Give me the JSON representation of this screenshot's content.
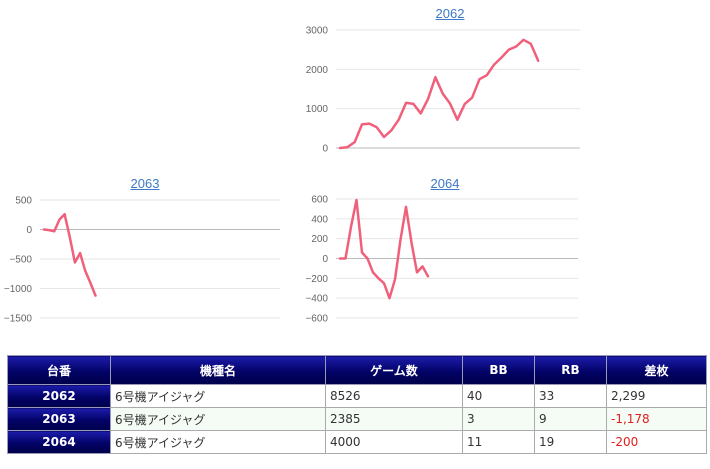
{
  "charts": [
    {
      "id": "2062",
      "title": "2062",
      "y_ticks": [
        "3000",
        "2000",
        "1000",
        "0"
      ],
      "chart_data": {
        "type": "line",
        "title": "2062",
        "ylim": [
          0,
          3000
        ],
        "y_ticks": [
          0,
          1000,
          2000,
          3000
        ],
        "color": "#f0607a",
        "series": [
          {
            "values": [
              0,
              20,
              150,
              600,
              620,
              530,
              280,
              450,
              720,
              1150,
              1120,
              880,
              1250,
              1800,
              1380,
              1130,
              720,
              1120,
              1280,
              1750,
              1850,
              2120,
              2300,
              2500,
              2580,
              2750,
              2650,
              2220
            ]
          }
        ]
      }
    },
    {
      "id": "2063",
      "title": "2063",
      "y_ticks": [
        "500",
        "0",
        "−500",
        "−1000",
        "−1500"
      ],
      "chart_data": {
        "type": "line",
        "title": "2063",
        "ylim": [
          -1500,
          500
        ],
        "y_ticks": [
          -1500,
          -1000,
          -500,
          0,
          500
        ],
        "color": "#f0607a",
        "series": [
          {
            "values": [
              0,
              -10,
              -30,
              170,
              260,
              -130,
              -560,
              -400,
              -700,
              -900,
              -1120
            ]
          }
        ]
      }
    },
    {
      "id": "2064",
      "title": "2064",
      "y_ticks": [
        "600",
        "400",
        "200",
        "0",
        "−200",
        "−400",
        "−600"
      ],
      "chart_data": {
        "type": "line",
        "title": "2064",
        "ylim": [
          -600,
          600
        ],
        "y_ticks": [
          -600,
          -400,
          -200,
          0,
          200,
          400,
          600
        ],
        "color": "#f0607a",
        "series": [
          {
            "values": [
              0,
              0,
              320,
              590,
              60,
              0,
              -140,
              -200,
              -250,
              -400,
              -210,
              190,
              520,
              160,
              -140,
              -80,
              -180
            ]
          }
        ]
      }
    }
  ],
  "table": {
    "headers": [
      "台番",
      "機種名",
      "ゲーム数",
      "BB",
      "RB",
      "差枚"
    ],
    "rows": [
      {
        "id": "2062",
        "machine": "6号機アイジャグ",
        "games": "8526",
        "bb": "40",
        "rb": "33",
        "diff": "2,299",
        "negative": false
      },
      {
        "id": "2063",
        "machine": "6号機アイジャグ",
        "games": "2385",
        "bb": "3",
        "rb": "9",
        "diff": "-1,178",
        "negative": true
      },
      {
        "id": "2064",
        "machine": "6号機アイジャグ",
        "games": "4000",
        "bb": "11",
        "rb": "19",
        "diff": "-200",
        "negative": true
      }
    ]
  }
}
